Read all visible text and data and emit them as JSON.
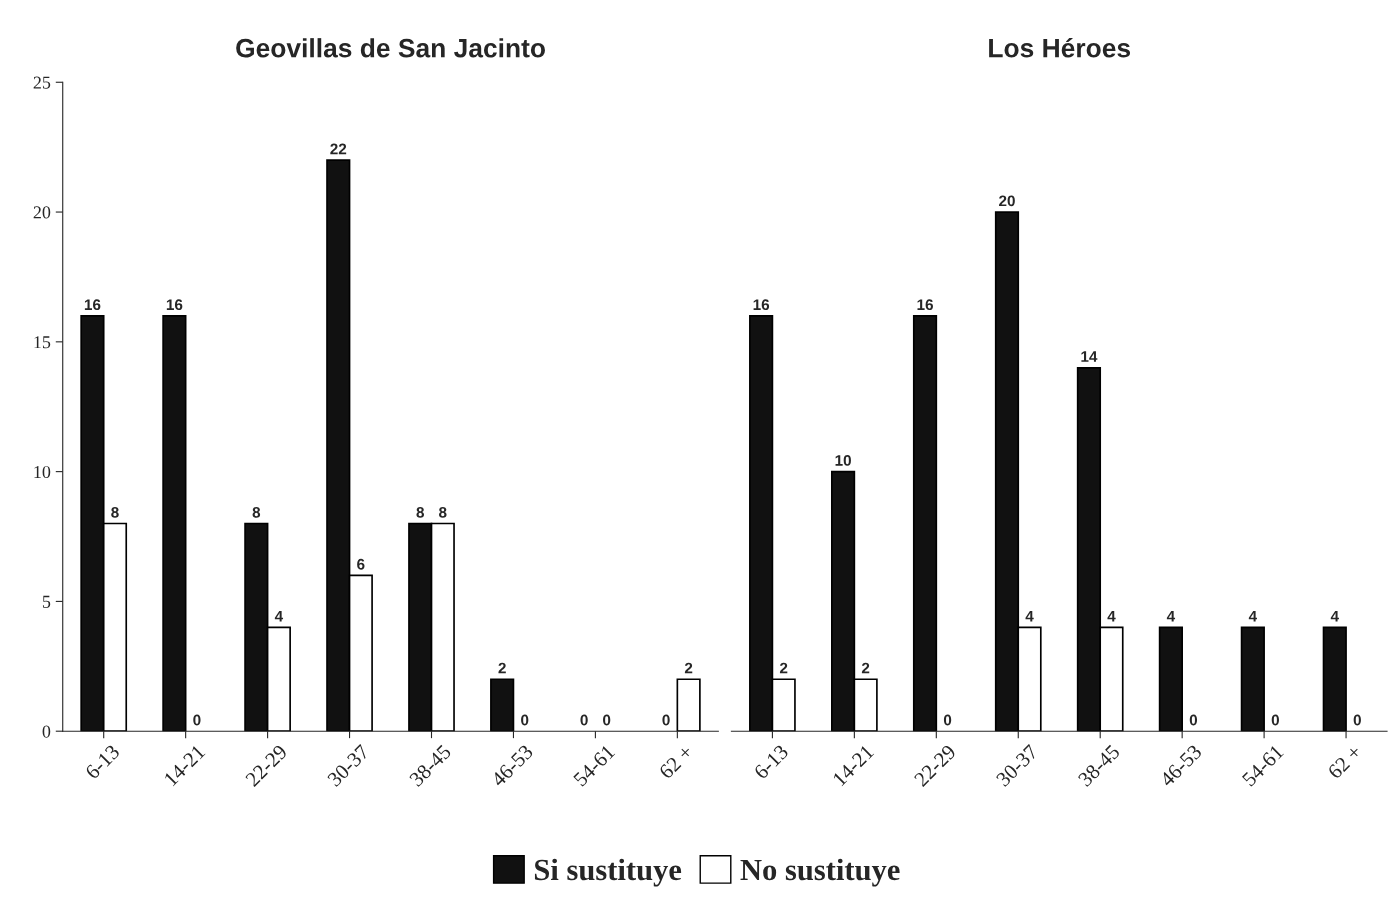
{
  "chart_data": [
    {
      "type": "bar",
      "title": "Geovillas de San Jacinto",
      "categories": [
        "6-13",
        "14-21",
        "22-29",
        "30-37",
        "38-45",
        "46-53",
        "54-61",
        "62 +"
      ],
      "series": [
        {
          "name": "Si sustituye",
          "color": "#111111",
          "values": [
            16,
            16,
            8,
            22,
            8,
            2,
            0,
            0
          ]
        },
        {
          "name": "No sustituye",
          "color": "#ffffff",
          "values": [
            8,
            0,
            4,
            6,
            8,
            0,
            0,
            2
          ]
        }
      ],
      "ylim": [
        0,
        25
      ],
      "yticks": [
        0,
        5,
        10,
        15,
        20,
        25
      ],
      "data_labels": true,
      "grid": false,
      "legend": "bottom"
    },
    {
      "type": "bar",
      "title": "Los Héroes",
      "categories": [
        "6-13",
        "14-21",
        "22-29",
        "30-37",
        "38-45",
        "46-53",
        "54-61",
        "62 +"
      ],
      "series": [
        {
          "name": "Si sustituye",
          "color": "#111111",
          "values": [
            16,
            10,
            16,
            20,
            14,
            4,
            4,
            4
          ]
        },
        {
          "name": "No sustituye",
          "color": "#ffffff",
          "values": [
            2,
            2,
            0,
            4,
            4,
            0,
            0,
            0
          ]
        }
      ],
      "ylim": [
        0,
        25
      ],
      "data_labels": true,
      "grid": false,
      "tick_labels": "x"
    }
  ]
}
